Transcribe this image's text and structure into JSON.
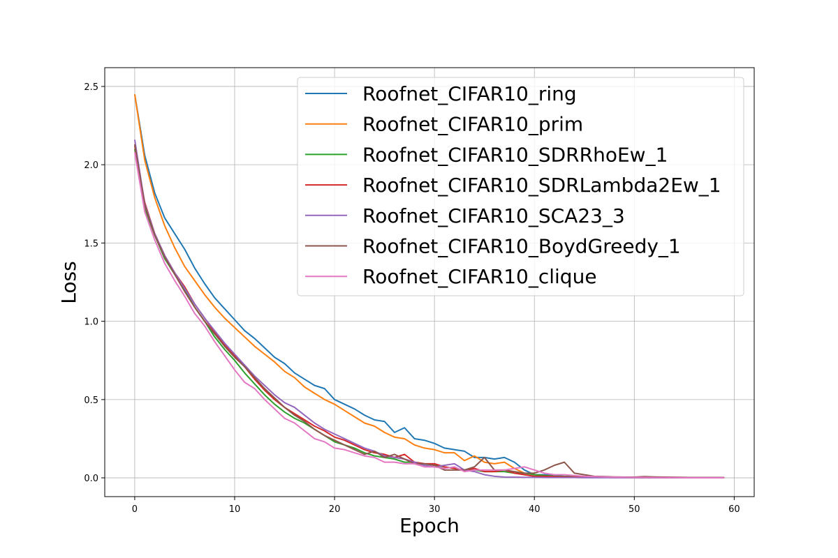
{
  "chart_data": {
    "type": "line",
    "title": "",
    "xlabel": "Epoch",
    "ylabel": "Loss",
    "xlim": [
      -3,
      62
    ],
    "ylim": [
      -0.12,
      2.62
    ],
    "xticks": [
      0,
      10,
      20,
      30,
      40,
      50,
      60
    ],
    "xtick_labels": [
      "0",
      "10",
      "20",
      "30",
      "40",
      "50",
      "60"
    ],
    "yticks": [
      0.0,
      0.5,
      1.0,
      1.5,
      2.0,
      2.5
    ],
    "ytick_labels": [
      "0.0",
      "0.5",
      "1.0",
      "1.5",
      "2.0",
      "2.5"
    ],
    "grid": true,
    "legend_position": "top-right",
    "x": [
      0,
      1,
      2,
      3,
      4,
      5,
      6,
      7,
      8,
      9,
      10,
      11,
      12,
      13,
      14,
      15,
      16,
      17,
      18,
      19,
      20,
      21,
      22,
      23,
      24,
      25,
      26,
      27,
      28,
      29,
      30,
      31,
      32,
      33,
      34,
      35,
      36,
      37,
      38,
      39,
      40,
      41,
      42,
      43,
      44,
      45,
      46,
      47,
      48,
      49,
      50,
      51,
      52,
      53,
      54,
      55,
      56,
      57,
      58,
      59
    ],
    "series": [
      {
        "name": "Roofnet_CIFAR10_ring",
        "color": "#1f77b4",
        "values": [
          2.45,
          2.06,
          1.82,
          1.66,
          1.56,
          1.46,
          1.34,
          1.24,
          1.15,
          1.08,
          1.01,
          0.94,
          0.89,
          0.83,
          0.77,
          0.73,
          0.67,
          0.63,
          0.59,
          0.57,
          0.5,
          0.47,
          0.44,
          0.4,
          0.37,
          0.36,
          0.29,
          0.32,
          0.25,
          0.24,
          0.22,
          0.19,
          0.18,
          0.17,
          0.13,
          0.13,
          0.12,
          0.13,
          0.1,
          0.05,
          0.02,
          0.02,
          0.015,
          0.01,
          0.01,
          0.008,
          0.006,
          0.005,
          0.004,
          0.003,
          0.003,
          0.002,
          0.002,
          0.002,
          0.001,
          0.001,
          0.001,
          0.001,
          0.001,
          0.001
        ]
      },
      {
        "name": "Roofnet_CIFAR10_prim",
        "color": "#ff7f0e",
        "values": [
          2.45,
          2.03,
          1.79,
          1.61,
          1.47,
          1.35,
          1.26,
          1.17,
          1.09,
          1.02,
          0.96,
          0.9,
          0.84,
          0.79,
          0.74,
          0.68,
          0.64,
          0.58,
          0.54,
          0.5,
          0.47,
          0.43,
          0.39,
          0.35,
          0.33,
          0.29,
          0.26,
          0.25,
          0.21,
          0.19,
          0.18,
          0.16,
          0.16,
          0.11,
          0.14,
          0.1,
          0.09,
          0.1,
          0.06,
          0.03,
          0.02,
          0.015,
          0.01,
          0.008,
          0.007,
          0.006,
          0.005,
          0.004,
          0.003,
          0.003,
          0.002,
          0.002,
          0.002,
          0.002,
          0.001,
          0.001,
          0.001,
          0.001,
          0.001,
          0.001
        ]
      },
      {
        "name": "Roofnet_CIFAR10_SDRRhoEw_1",
        "color": "#2ca02c",
        "values": [
          2.1,
          1.72,
          1.55,
          1.4,
          1.3,
          1.2,
          1.09,
          1.0,
          0.9,
          0.82,
          0.75,
          0.67,
          0.6,
          0.53,
          0.47,
          0.42,
          0.38,
          0.35,
          0.31,
          0.27,
          0.23,
          0.21,
          0.19,
          0.16,
          0.14,
          0.13,
          0.12,
          0.1,
          0.1,
          0.09,
          0.08,
          0.07,
          0.06,
          0.05,
          0.05,
          0.04,
          0.04,
          0.04,
          0.03,
          0.03,
          0.02,
          0.015,
          0.01,
          0.008,
          0.006,
          0.005,
          0.004,
          0.003,
          0.003,
          0.002,
          0.002,
          0.002,
          0.001,
          0.001,
          0.001,
          0.001,
          0.001,
          0.001,
          0.001,
          0.001
        ]
      },
      {
        "name": "Roofnet_CIFAR10_SDRLambda2Ew_1",
        "color": "#d62728",
        "values": [
          2.12,
          1.76,
          1.56,
          1.42,
          1.31,
          1.22,
          1.11,
          1.02,
          0.93,
          0.85,
          0.78,
          0.71,
          0.63,
          0.56,
          0.5,
          0.45,
          0.41,
          0.37,
          0.33,
          0.3,
          0.26,
          0.24,
          0.21,
          0.18,
          0.16,
          0.15,
          0.13,
          0.15,
          0.1,
          0.09,
          0.09,
          0.07,
          0.06,
          0.05,
          0.06,
          0.04,
          0.04,
          0.05,
          0.03,
          0.02,
          0.01,
          0.01,
          0.008,
          0.006,
          0.005,
          0.004,
          0.003,
          0.003,
          0.002,
          0.002,
          0.002,
          0.001,
          0.001,
          0.001,
          0.001,
          0.001,
          0.001,
          0.001,
          0.001,
          0.001
        ]
      },
      {
        "name": "Roofnet_CIFAR10_SCA23_3",
        "color": "#9467bd",
        "values": [
          2.16,
          1.75,
          1.56,
          1.42,
          1.31,
          1.21,
          1.11,
          1.02,
          0.94,
          0.86,
          0.79,
          0.72,
          0.65,
          0.59,
          0.53,
          0.48,
          0.45,
          0.4,
          0.35,
          0.31,
          0.28,
          0.25,
          0.22,
          0.19,
          0.17,
          0.14,
          0.13,
          0.12,
          0.1,
          0.08,
          0.07,
          0.08,
          0.09,
          0.05,
          0.04,
          0.02,
          0.01,
          0.005,
          0.004,
          0.003,
          0.003,
          0.002,
          0.002,
          0.002,
          0.002,
          0.001,
          0.001,
          0.001,
          0.001,
          0.001,
          0.001,
          0.001,
          0.001,
          0.001,
          0.001,
          0.001,
          0.001,
          0.001,
          0.001,
          0.001
        ]
      },
      {
        "name": "Roofnet_CIFAR10_BoydGreedy_1",
        "color": "#8c564b",
        "values": [
          2.13,
          1.74,
          1.55,
          1.41,
          1.3,
          1.19,
          1.09,
          1.0,
          0.92,
          0.84,
          0.77,
          0.71,
          0.64,
          0.57,
          0.51,
          0.45,
          0.4,
          0.36,
          0.31,
          0.27,
          0.24,
          0.21,
          0.18,
          0.15,
          0.17,
          0.13,
          0.15,
          0.12,
          0.09,
          0.09,
          0.08,
          0.05,
          0.05,
          0.05,
          0.07,
          0.13,
          0.05,
          0.05,
          0.04,
          0.03,
          0.03,
          0.05,
          0.08,
          0.1,
          0.03,
          0.02,
          0.01,
          0.008,
          0.006,
          0.005,
          0.005,
          0.008,
          0.006,
          0.005,
          0.004,
          0.003,
          0.002,
          0.002,
          0.002,
          0.002
        ]
      },
      {
        "name": "Roofnet_CIFAR10_clique",
        "color": "#e377c2",
        "values": [
          2.08,
          1.7,
          1.52,
          1.37,
          1.26,
          1.16,
          1.05,
          0.97,
          0.87,
          0.78,
          0.69,
          0.61,
          0.57,
          0.5,
          0.44,
          0.38,
          0.35,
          0.3,
          0.25,
          0.23,
          0.19,
          0.18,
          0.16,
          0.14,
          0.13,
          0.1,
          0.1,
          0.09,
          0.09,
          0.07,
          0.07,
          0.06,
          0.07,
          0.04,
          0.05,
          0.05,
          0.05,
          0.05,
          0.06,
          0.07,
          0.05,
          0.03,
          0.02,
          0.02,
          0.015,
          0.01,
          0.008,
          0.006,
          0.005,
          0.004,
          0.003,
          0.003,
          0.002,
          0.002,
          0.002,
          0.001,
          0.001,
          0.001,
          0.001,
          0.001
        ]
      }
    ]
  }
}
